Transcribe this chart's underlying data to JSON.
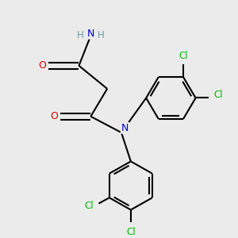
{
  "background_color": "#ebebeb",
  "atom_colors": {
    "C": "#000000",
    "N": "#0000cc",
    "O": "#dd0000",
    "Cl": "#00bb00",
    "H": "#6699aa"
  },
  "bond_color": "#000000",
  "bond_width": 1.5,
  "figsize": [
    3.0,
    3.0
  ],
  "dpi": 100,
  "xlim": [
    0,
    10
  ],
  "ylim": [
    0,
    10
  ]
}
